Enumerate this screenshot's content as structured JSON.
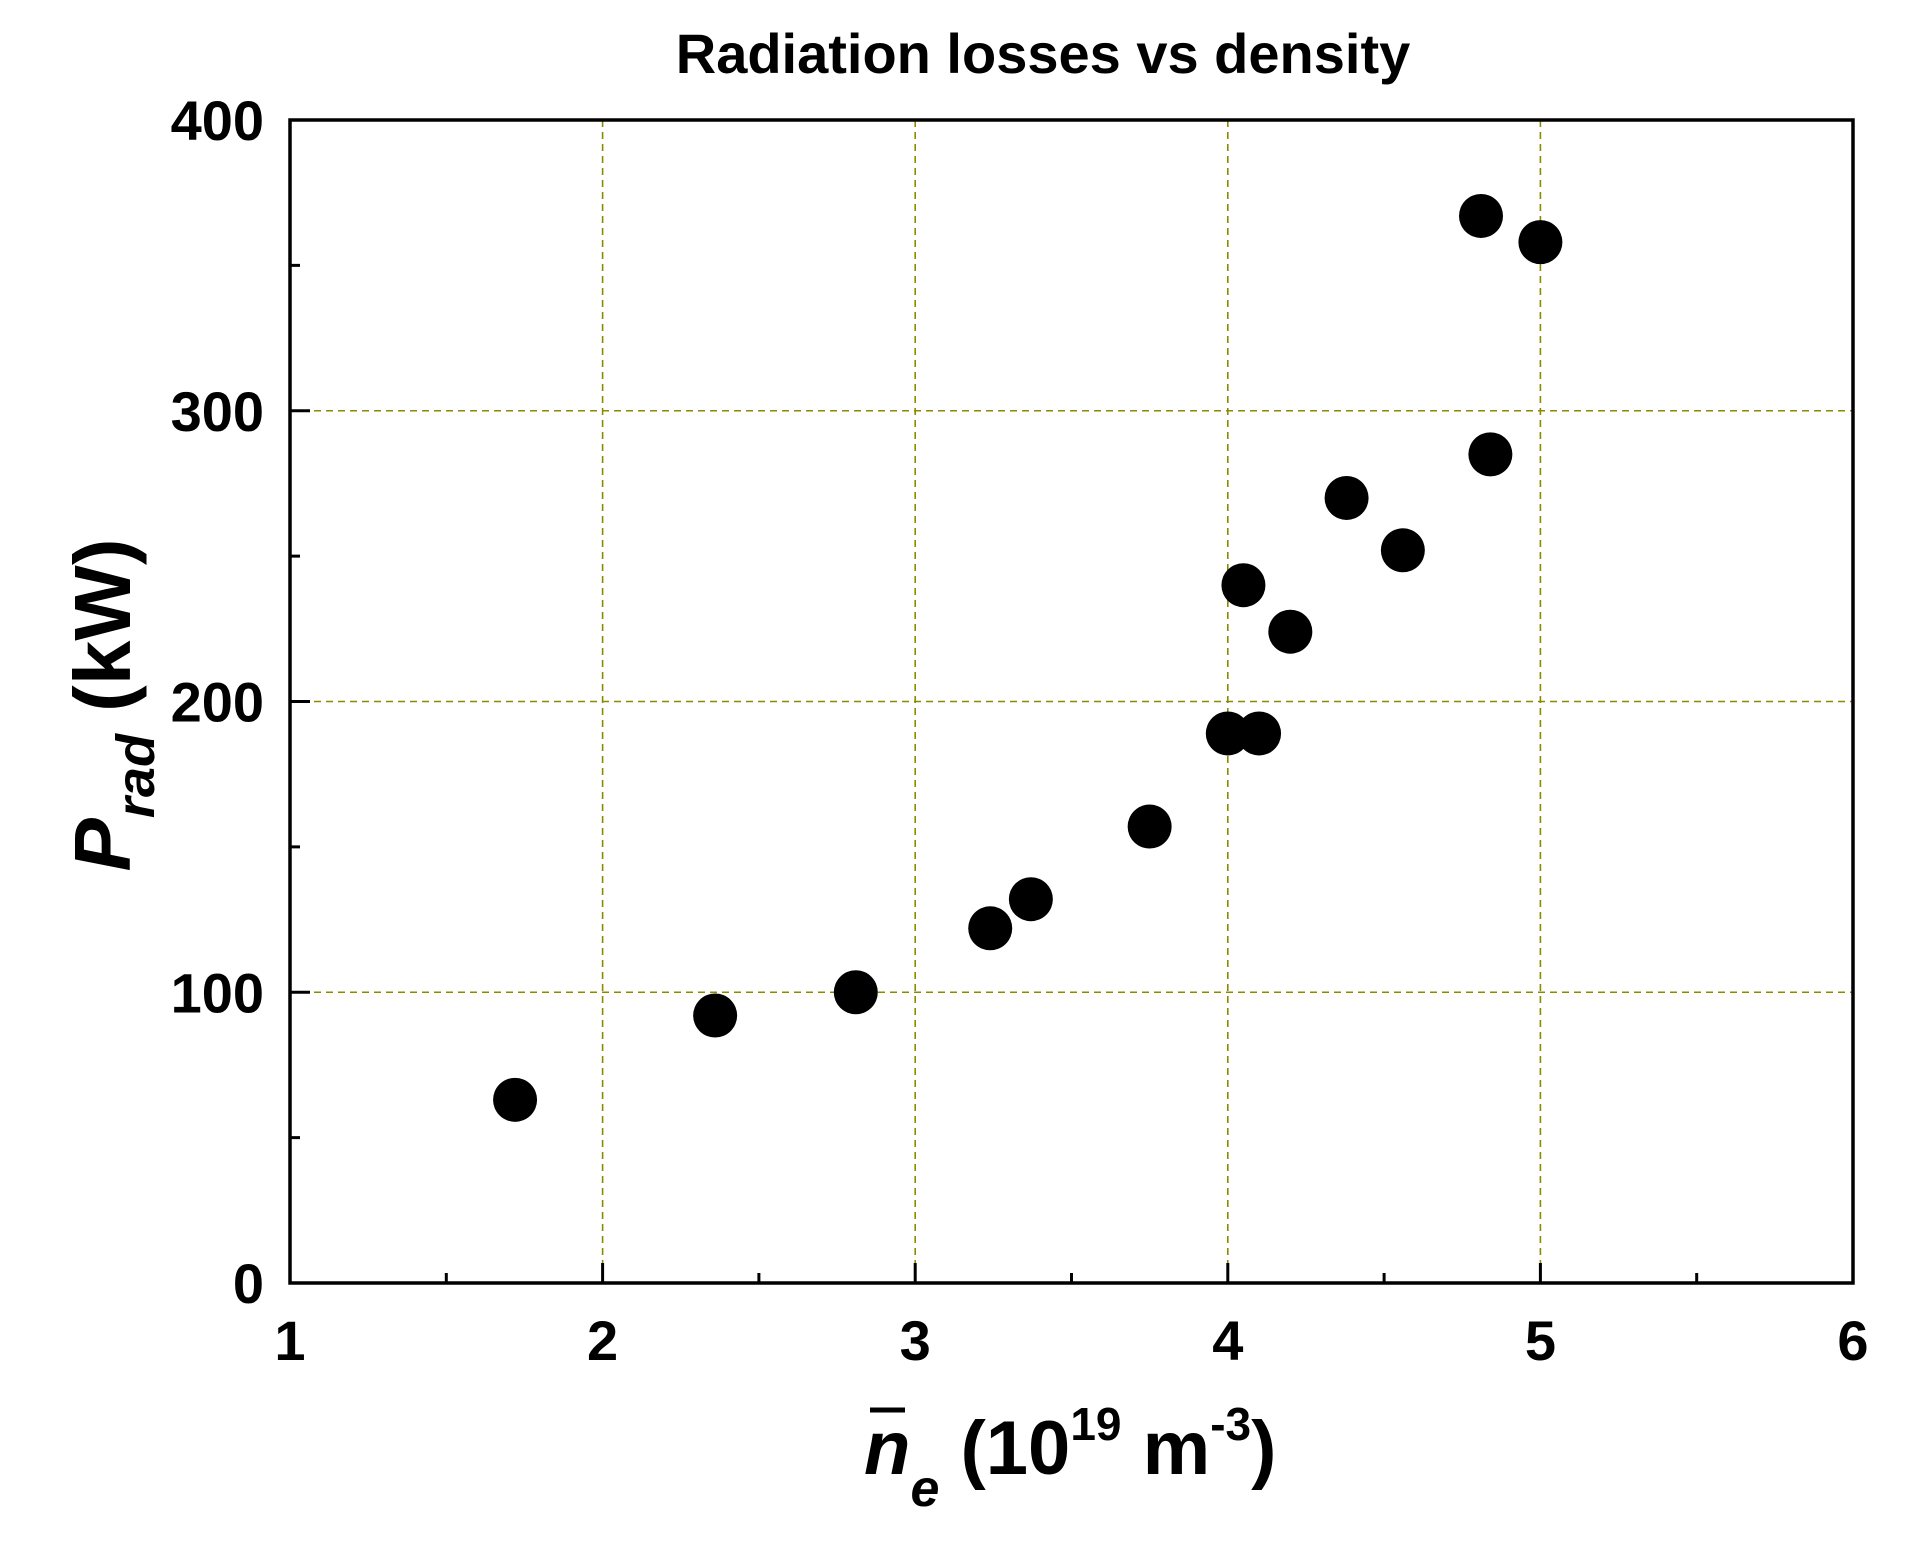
{
  "chart_data": {
    "type": "scatter",
    "title": "Radiation losses vs density",
    "xlabel": {
      "symbol": "n",
      "subscript": "e",
      "unit_open": " (10",
      "exponent": "19",
      "unit_mid": " m",
      "unit_exponent": "-3",
      "unit_close": ")"
    },
    "ylabel": {
      "symbol": "P",
      "subscript": "rad",
      "unit": " (kW)"
    },
    "xlim": [
      1,
      6
    ],
    "ylim": [
      0,
      400
    ],
    "xticks": [
      1,
      2,
      3,
      4,
      5,
      6
    ],
    "xticks_minor": [
      1.5,
      2.5,
      3.5,
      4.5,
      5.5
    ],
    "yticks": [
      0,
      100,
      200,
      300,
      400
    ],
    "yticks_minor": [
      50,
      150,
      250,
      350
    ],
    "xtick_labels": [
      "1",
      "2",
      "3",
      "4",
      "5",
      "6"
    ],
    "ytick_labels": [
      "0",
      "100",
      "200",
      "300",
      "400"
    ],
    "grid": true,
    "grid_color": "#8b8b00",
    "marker_color": "#000000",
    "series": [
      {
        "name": "Prad",
        "x": [
          1.72,
          2.36,
          2.81,
          3.24,
          3.37,
          3.75,
          4.0,
          4.1,
          4.05,
          4.2,
          4.38,
          4.56,
          4.81,
          4.84,
          5.0
        ],
        "y": [
          63,
          92,
          100,
          122,
          132,
          157,
          189,
          189,
          240,
          224,
          270,
          252,
          367,
          285,
          358
        ]
      }
    ]
  }
}
